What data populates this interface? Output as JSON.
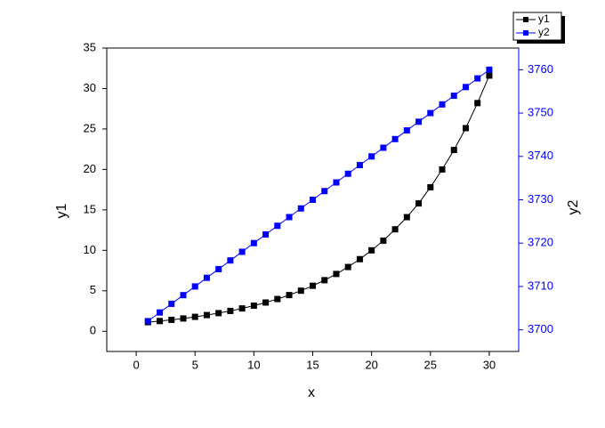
{
  "chart_data": {
    "type": "line",
    "x_label": "x",
    "y_label": "y1",
    "y2_label": "y2",
    "x": [
      1,
      2,
      3,
      4,
      5,
      6,
      7,
      8,
      9,
      10,
      11,
      12,
      13,
      14,
      15,
      16,
      17,
      18,
      19,
      20,
      21,
      22,
      23,
      24,
      25,
      26,
      27,
      28,
      29,
      30
    ],
    "series": [
      {
        "name": "y1",
        "color": "#000000",
        "values": [
          1.12,
          1.26,
          1.41,
          1.58,
          1.78,
          2.0,
          2.24,
          2.51,
          2.82,
          3.16,
          3.55,
          3.98,
          4.47,
          5.01,
          5.62,
          6.31,
          7.08,
          7.94,
          8.91,
          10.0,
          11.2,
          12.6,
          14.1,
          15.8,
          17.8,
          20.0,
          22.4,
          25.1,
          28.2,
          31.6
        ]
      },
      {
        "name": "y2",
        "color": "#0000ff",
        "axis": "y2",
        "values": [
          3702,
          3704,
          3706,
          3708,
          3710,
          3712,
          3714,
          3716,
          3718,
          3720,
          3722,
          3724,
          3726,
          3728,
          3730,
          3732,
          3734,
          3736,
          3738,
          3740,
          3742,
          3744,
          3746,
          3748,
          3750,
          3752,
          3754,
          3756,
          3758,
          3760
        ]
      }
    ],
    "xlim": [
      -2.5,
      32.5
    ],
    "xticks": [
      0,
      5,
      10,
      15,
      20,
      25,
      30
    ],
    "ylim": [
      -2.5,
      35
    ],
    "yticks": [
      0,
      5,
      10,
      15,
      20,
      25,
      30,
      35
    ],
    "y2lim": [
      3695,
      3765
    ],
    "y2ticks": [
      3700,
      3710,
      3720,
      3730,
      3740,
      3750,
      3760
    ],
    "legend": "upper-right"
  }
}
